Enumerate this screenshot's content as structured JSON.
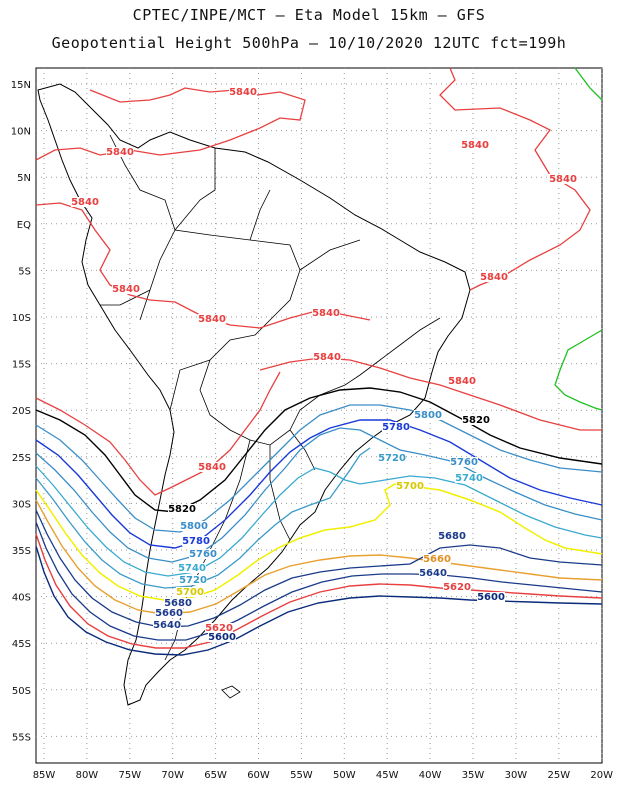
{
  "title_line1": "CPTEC/INPE/MCT –  Eta Model 15km – GFS",
  "title_line2": "Geopotential Height 500hPa – 10/10/2020 12UTC fct=199h",
  "lat_ticks": [
    "15N",
    "10N",
    "5N",
    "EQ",
    "5S",
    "10S",
    "15S",
    "20S",
    "25S",
    "30S",
    "35S",
    "40S",
    "45S",
    "50S",
    "55S"
  ],
  "lon_ticks": [
    "85W",
    "80W",
    "75W",
    "70W",
    "65W",
    "60W",
    "55W",
    "50W",
    "45W",
    "40W",
    "35W",
    "30W",
    "25W",
    "20W"
  ],
  "colors": {
    "c5840": "#e84040",
    "c5820": "#000000",
    "c5800": "#3a8ec8",
    "c5780": "#1a3ad8",
    "c5760": "#3a8ec8",
    "c5740": "#3aaad0",
    "c5720": "#3a9ac8",
    "c5700": "#f0f000",
    "c5680": "#f0a030",
    "c5660": "#1a3a8a",
    "c5640": "#1a3a8a",
    "c5620": "#e84040",
    "c5600": "#0a2a7a",
    "c5860": "#20c020",
    "land": "#000000",
    "grid": "#888888"
  },
  "contour_labels": [
    {
      "text": "5840",
      "color": "#e84040"
    },
    {
      "text": "5840",
      "color": "#e84040"
    },
    {
      "text": "5840",
      "color": "#e84040"
    },
    {
      "text": "5840",
      "color": "#e84040"
    },
    {
      "text": "5840",
      "color": "#e84040"
    },
    {
      "text": "5840",
      "color": "#e84040"
    },
    {
      "text": "5840",
      "color": "#e84040"
    },
    {
      "text": "5840",
      "color": "#e84040"
    },
    {
      "text": "5840",
      "color": "#e84040"
    },
    {
      "text": "5840",
      "color": "#e84040"
    },
    {
      "text": "5840",
      "color": "#e84040"
    },
    {
      "text": "5840",
      "color": "#e84040"
    },
    {
      "text": "5820",
      "color": "#000000"
    },
    {
      "text": "5820",
      "color": "#000000"
    },
    {
      "text": "5800",
      "color": "#3a8ec8"
    },
    {
      "text": "5800",
      "color": "#3a8ec8"
    },
    {
      "text": "5780",
      "color": "#1a3ad8"
    },
    {
      "text": "5780",
      "color": "#1a3ad8"
    },
    {
      "text": "5760",
      "color": "#3a8ec8"
    },
    {
      "text": "5760",
      "color": "#3a8ec8"
    },
    {
      "text": "5740",
      "color": "#3aaad0"
    },
    {
      "text": "5740",
      "color": "#3aaad0"
    },
    {
      "text": "5720",
      "color": "#3a9ac8"
    },
    {
      "text": "5720",
      "color": "#3a9ac8"
    },
    {
      "text": "5700",
      "color": "#d8c800"
    },
    {
      "text": "5700",
      "color": "#d8c800"
    },
    {
      "text": "5680",
      "color": "#1a3a8a"
    },
    {
      "text": "5680",
      "color": "#1a3a8a"
    },
    {
      "text": "5660",
      "color": "#e09020"
    },
    {
      "text": "5660",
      "color": "#1a3a8a"
    },
    {
      "text": "5640",
      "color": "#1a3a8a"
    },
    {
      "text": "5640",
      "color": "#1a3a8a"
    },
    {
      "text": "5620",
      "color": "#e84040"
    },
    {
      "text": "5620",
      "color": "#e84040"
    },
    {
      "text": "5600",
      "color": "#0a2a7a"
    },
    {
      "text": "5600",
      "color": "#0a2a7a"
    }
  ]
}
